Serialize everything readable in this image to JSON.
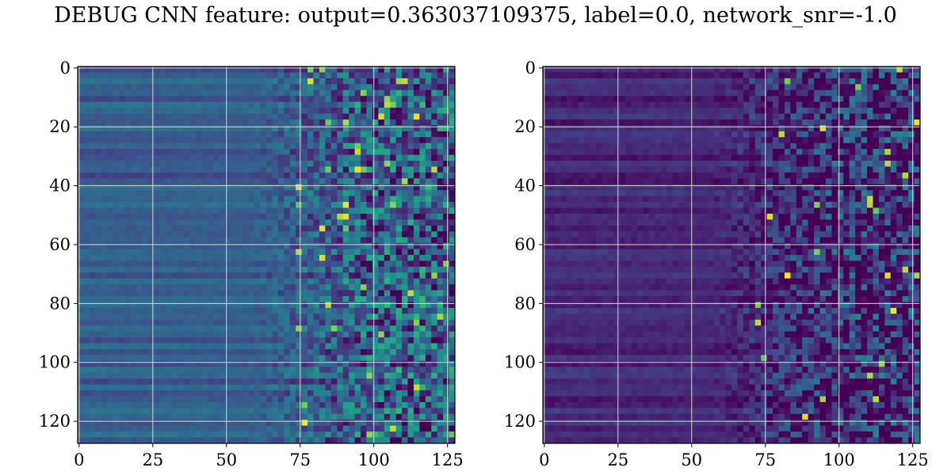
{
  "figure": {
    "title": "DEBUG CNN feature: output=0.363037109375, label=0.0, network_snr=-1.0"
  },
  "chart_data": [
    {
      "type": "heatmap",
      "colormap": "viridis",
      "rows": 128,
      "cols": 128,
      "xlim": [
        -0.5,
        127.5
      ],
      "ylim": [
        127.5,
        -0.5
      ],
      "x_ticks": [
        0,
        25,
        50,
        75,
        100,
        125
      ],
      "y_ticks": [
        0,
        20,
        40,
        60,
        80,
        100,
        120
      ],
      "x_tick_labels": [
        "0",
        "25",
        "50",
        "75",
        "100",
        "125"
      ],
      "y_tick_labels": [
        "0",
        "20",
        "40",
        "60",
        "80",
        "100",
        "120"
      ],
      "grid": true,
      "description": "Left panel: horizontal streaks at low columns (mostly uniform teal/blue), becoming noisy speckled green/yellow for columns > ~70; brighter overall."
    },
    {
      "type": "heatmap",
      "colormap": "viridis",
      "rows": 128,
      "cols": 128,
      "xlim": [
        -0.5,
        127.5
      ],
      "ylim": [
        127.5,
        -0.5
      ],
      "x_ticks": [
        0,
        25,
        50,
        75,
        100,
        125
      ],
      "y_ticks": [
        0,
        20,
        40,
        60,
        80,
        100,
        120
      ],
      "x_tick_labels": [
        "0",
        "25",
        "50",
        "75",
        "100",
        "125"
      ],
      "y_tick_labels": [
        "0",
        "20",
        "40",
        "60",
        "80",
        "100",
        "120"
      ],
      "grid": true,
      "description": "Right panel: darker purple streaks at low columns, speckled noise with sparse bright yellow pixels for columns > ~75."
    }
  ],
  "colors": {
    "grid": "#d9d9d9",
    "viridis_low": "#440154",
    "viridis_mid": "#21918c",
    "viridis_high": "#fde725"
  }
}
